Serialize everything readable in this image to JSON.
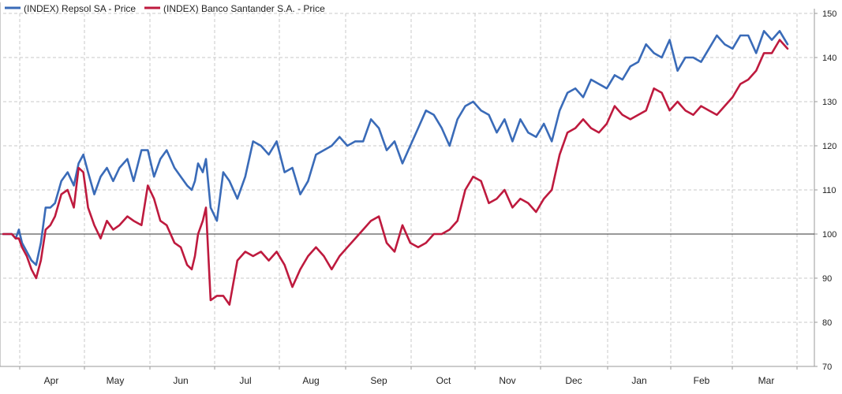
{
  "colors": {
    "repsol": "#3a6bb8",
    "santander": "#be1a3e",
    "grid": "#c8c8c8",
    "baseline": "#333333",
    "axis": "#9a9a9a",
    "text": "#222222"
  },
  "chart_data": {
    "type": "line",
    "title": "",
    "xlabel": "",
    "ylabel": "",
    "ylim": [
      70,
      150
    ],
    "yticks": [
      70,
      80,
      90,
      100,
      110,
      120,
      130,
      140,
      150
    ],
    "y_axis_position": "right",
    "grid": true,
    "baseline": 100,
    "legend_position": "top-left",
    "month_labels": [
      "Apr",
      "May",
      "Jun",
      "Jul",
      "Aug",
      "Sep",
      "Oct",
      "Nov",
      "Dec",
      "Jan",
      "Feb",
      "Mar"
    ],
    "x_range": [
      0,
      100
    ],
    "series": [
      {
        "name": "(INDEX) Repsol SA - Price",
        "color": "#3a6bb8",
        "x": [
          0,
          1.1,
          1.6,
          2.0,
          2.4,
          3.0,
          3.6,
          4.2,
          4.8,
          5.4,
          6.0,
          6.6,
          7.4,
          8.2,
          9.0,
          9.6,
          10.2,
          10.8,
          11.6,
          12.4,
          13.2,
          14.0,
          14.8,
          15.8,
          16.6,
          17.6,
          18.4,
          19.2,
          20.0,
          20.8,
          21.8,
          22.6,
          23.4,
          24.0,
          24.4,
          24.8,
          25.4,
          25.8,
          26.4,
          27.2,
          28.0,
          28.8,
          29.8,
          30.8,
          31.8,
          32.8,
          33.8,
          34.8,
          35.8,
          36.8,
          37.8,
          38.8,
          39.8,
          40.8,
          41.8,
          42.8,
          43.8,
          44.8,
          45.8,
          46.8,
          47.8,
          48.8,
          49.8,
          50.8,
          51.8,
          52.8,
          53.8,
          54.8,
          55.8,
          56.8,
          57.8,
          58.8,
          59.8,
          60.8,
          61.8,
          62.8,
          63.8,
          64.8,
          65.8,
          66.8,
          67.8,
          68.8,
          69.8,
          70.8,
          71.8,
          72.8,
          73.8,
          74.8,
          75.8,
          76.8,
          77.8,
          78.8,
          79.8,
          80.8,
          81.8,
          82.8,
          83.8,
          84.8,
          85.8,
          86.8,
          87.8,
          88.8,
          89.8,
          90.8,
          91.8,
          92.8,
          93.8,
          94.8,
          95.8,
          96.8,
          97.8,
          98.8,
          99.8
        ],
        "values": [
          100,
          100,
          99,
          101,
          98,
          96,
          94,
          93,
          98,
          106,
          106,
          107,
          112,
          114,
          111,
          116,
          118,
          114,
          109,
          113,
          115,
          112,
          115,
          117,
          112,
          119,
          119,
          113,
          117,
          119,
          115,
          113,
          111,
          110,
          112,
          116,
          114,
          117,
          106,
          103,
          114,
          112,
          108,
          113,
          121,
          120,
          118,
          121,
          114,
          115,
          109,
          112,
          118,
          119,
          120,
          122,
          120,
          121,
          121,
          126,
          124,
          119,
          121,
          116,
          120,
          124,
          128,
          127,
          124,
          120,
          126,
          129,
          130,
          128,
          127,
          123,
          126,
          121,
          126,
          123,
          122,
          125,
          121,
          128,
          132,
          133,
          131,
          135,
          134,
          133,
          136,
          135,
          138,
          139,
          143,
          141,
          140,
          144,
          137,
          140,
          140,
          139,
          142,
          145,
          143,
          142,
          145,
          145,
          141,
          146,
          144,
          146,
          143
        ]
      },
      {
        "name": "(INDEX) Banco Santander S.A. - Price",
        "color": "#be1a3e",
        "x": [
          0,
          1.1,
          1.6,
          2.0,
          2.4,
          3.0,
          3.6,
          4.2,
          4.8,
          5.4,
          6.0,
          6.6,
          7.4,
          8.2,
          9.0,
          9.6,
          10.2,
          10.8,
          11.6,
          12.4,
          13.2,
          14.0,
          14.8,
          15.8,
          16.6,
          17.6,
          18.4,
          19.2,
          20.0,
          20.8,
          21.8,
          22.6,
          23.4,
          24.0,
          24.4,
          24.8,
          25.4,
          25.8,
          26.4,
          27.2,
          28.0,
          28.8,
          29.8,
          30.8,
          31.8,
          32.8,
          33.8,
          34.8,
          35.8,
          36.8,
          37.8,
          38.8,
          39.8,
          40.8,
          41.8,
          42.8,
          43.8,
          44.8,
          45.8,
          46.8,
          47.8,
          48.8,
          49.8,
          50.8,
          51.8,
          52.8,
          53.8,
          54.8,
          55.8,
          56.8,
          57.8,
          58.8,
          59.8,
          60.8,
          61.8,
          62.8,
          63.8,
          64.8,
          65.8,
          66.8,
          67.8,
          68.8,
          69.8,
          70.8,
          71.8,
          72.8,
          73.8,
          74.8,
          75.8,
          76.8,
          77.8,
          78.8,
          79.8,
          80.8,
          81.8,
          82.8,
          83.8,
          84.8,
          85.8,
          86.8,
          87.8,
          88.8,
          89.8,
          90.8,
          91.8,
          92.8,
          93.8,
          94.8,
          95.8,
          96.8,
          97.8,
          98.8,
          99.8
        ],
        "values": [
          100,
          100,
          99,
          99,
          97,
          95,
          92,
          90,
          94,
          101,
          102,
          104,
          109,
          110,
          106,
          115,
          114,
          106,
          102,
          99,
          103,
          101,
          102,
          104,
          103,
          102,
          111,
          108,
          103,
          102,
          98,
          97,
          93,
          92,
          95,
          100,
          103,
          106,
          85,
          86,
          86,
          84,
          94,
          96,
          95,
          96,
          94,
          96,
          93,
          88,
          92,
          95,
          97,
          95,
          92,
          95,
          97,
          99,
          101,
          103,
          104,
          98,
          96,
          102,
          98,
          97,
          98,
          100,
          100,
          101,
          103,
          110,
          113,
          112,
          107,
          108,
          110,
          106,
          108,
          107,
          105,
          108,
          110,
          118,
          123,
          124,
          126,
          124,
          123,
          125,
          129,
          127,
          126,
          127,
          128,
          133,
          132,
          128,
          130,
          128,
          127,
          129,
          128,
          127,
          129,
          131,
          134,
          135,
          137,
          141,
          141,
          144,
          142
        ]
      }
    ]
  }
}
